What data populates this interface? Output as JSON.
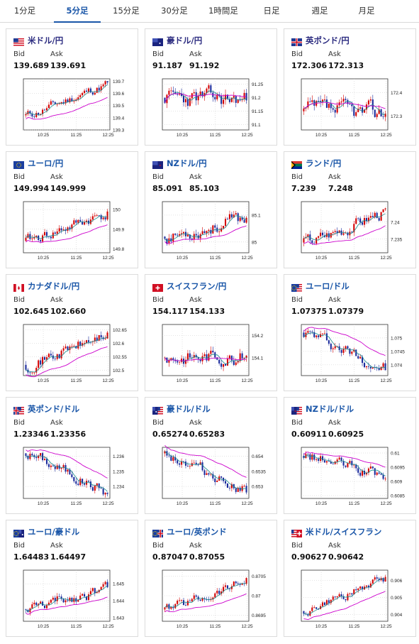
{
  "tabs": [
    {
      "label": "1分足",
      "active": false
    },
    {
      "label": "5分足",
      "active": true
    },
    {
      "label": "15分足",
      "active": false
    },
    {
      "label": "30分足",
      "active": false
    },
    {
      "label": "1時間足",
      "active": false
    },
    {
      "label": "日足",
      "active": false
    },
    {
      "label": "週足",
      "active": false
    },
    {
      "label": "月足",
      "active": false
    }
  ],
  "labels": {
    "bid": "Bid",
    "ask": "Ask"
  },
  "colors": {
    "up": "#d40000",
    "down": "#1a2a9c",
    "ma_fast": "#1a8a8a",
    "ma_slow": "#cc00cc",
    "accent": "#1a56a8"
  },
  "cards": [
    {
      "pair": "米ドル/円",
      "flag": "us-flag",
      "bid": "139.689",
      "ask": "139.691",
      "chart_data": {
        "type": "candlestick",
        "x_ticks": [
          "10:25",
          "11:25",
          "12:25"
        ],
        "y_ticks": [
          "139.7",
          "139.6",
          "139.5",
          "139.4",
          "139.3"
        ],
        "ylim": [
          139.3,
          139.72
        ],
        "open": 139.42,
        "close": 139.69,
        "volatility": 0.03,
        "seed": 11
      }
    },
    {
      "pair": "豪ドル/円",
      "flag": "au-flag",
      "bid": "91.187",
      "ask": "91.192",
      "chart_data": {
        "type": "candlestick",
        "x_ticks": [
          "10:25",
          "11:25",
          "12:25"
        ],
        "y_ticks": [
          "91.25",
          "91.2",
          "91.15",
          "91.1"
        ],
        "ylim": [
          91.08,
          91.27
        ],
        "open": 91.2,
        "close": 91.19,
        "volatility": 0.025,
        "seed": 23
      }
    },
    {
      "pair": "英ポンド/円",
      "flag": "uk-flag",
      "bid": "172.306",
      "ask": "172.313",
      "chart_data": {
        "type": "candlestick",
        "x_ticks": [
          "10:25",
          "11:25",
          "12:25"
        ],
        "y_ticks": [
          "172.4",
          "172.3"
        ],
        "ylim": [
          172.24,
          172.46
        ],
        "open": 172.32,
        "close": 172.31,
        "volatility": 0.03,
        "seed": 37
      }
    },
    {
      "pair": "ユーロ/円",
      "flag": "eu-flag",
      "bid": "149.994",
      "ask": "149.999",
      "chart_data": {
        "type": "candlestick",
        "x_ticks": [
          "10:25",
          "11:25",
          "12:25"
        ],
        "y_ticks": [
          "150",
          "149.9",
          "149.8"
        ],
        "ylim": [
          149.78,
          150.04
        ],
        "open": 149.84,
        "close": 149.99,
        "volatility": 0.022,
        "seed": 41
      }
    },
    {
      "pair": "NZドル/円",
      "flag": "nz-flag",
      "bid": "85.091",
      "ask": "85.103",
      "chart_data": {
        "type": "candlestick",
        "x_ticks": [
          "10:25",
          "11:25",
          "12:25"
        ],
        "y_ticks": [
          "85.1",
          "85"
        ],
        "ylim": [
          84.96,
          85.15
        ],
        "open": 85.02,
        "close": 85.09,
        "volatility": 0.02,
        "seed": 53
      }
    },
    {
      "pair": "ランド/円",
      "flag": "za-flag",
      "bid": "7.239",
      "ask": "7.248",
      "chart_data": {
        "type": "candlestick",
        "x_ticks": [
          "10:25",
          "11:25",
          "12:25"
        ],
        "y_ticks": [
          "7.24",
          "7.235"
        ],
        "ylim": [
          7.231,
          7.246
        ],
        "open": 7.234,
        "close": 7.244,
        "volatility": 0.0015,
        "seed": 67
      }
    },
    {
      "pair": "カナダドル/円",
      "flag": "ca-flag",
      "bid": "102.645",
      "ask": "102.660",
      "chart_data": {
        "type": "candlestick",
        "x_ticks": [
          "10:25",
          "11:25",
          "12:25"
        ],
        "y_ticks": [
          "102.65",
          "102.6",
          "102.55",
          "102.5"
        ],
        "ylim": [
          102.48,
          102.67
        ],
        "open": 102.52,
        "close": 102.64,
        "volatility": 0.018,
        "seed": 71
      }
    },
    {
      "pair": "スイスフラン/円",
      "flag": "ch-flag",
      "bid": "154.117",
      "ask": "154.133",
      "chart_data": {
        "type": "candlestick",
        "x_ticks": [
          "10:25",
          "11:25",
          "12:25"
        ],
        "y_ticks": [
          "154.2",
          "154.1"
        ],
        "ylim": [
          154.02,
          154.25
        ],
        "open": 154.1,
        "close": 154.11,
        "volatility": 0.025,
        "seed": 83
      }
    },
    {
      "pair": "ユーロ/ドル",
      "flag": "euus-flag",
      "bid": "1.07375",
      "ask": "1.07379",
      "chart_data": {
        "type": "candlestick",
        "x_ticks": [
          "10:25",
          "11:25",
          "12:25"
        ],
        "y_ticks": [
          "1.075",
          "1.0745",
          "1.074"
        ],
        "ylim": [
          1.0736,
          1.0755
        ],
        "open": 1.0752,
        "close": 1.0738,
        "volatility": 0.00018,
        "seed": 97
      }
    },
    {
      "pair": "英ポンド/ドル",
      "flag": "ukus-flag",
      "bid": "1.23346",
      "ask": "1.23356",
      "chart_data": {
        "type": "candlestick",
        "x_ticks": [
          "10:25",
          "11:25",
          "12:25"
        ],
        "y_ticks": [
          "1.236",
          "1.235",
          "1.234"
        ],
        "ylim": [
          1.2332,
          1.2366
        ],
        "open": 1.2362,
        "close": 1.2335,
        "volatility": 0.0003,
        "seed": 101
      }
    },
    {
      "pair": "豪ドル/ドル",
      "flag": "auus-flag",
      "bid": "0.65274",
      "ask": "0.65283",
      "chart_data": {
        "type": "candlestick",
        "x_ticks": [
          "10:25",
          "11:25",
          "12:25"
        ],
        "y_ticks": [
          "0.654",
          "0.6535",
          "0.653"
        ],
        "ylim": [
          0.6526,
          0.6543
        ],
        "open": 0.6541,
        "close": 0.6528,
        "volatility": 0.00015,
        "seed": 113
      }
    },
    {
      "pair": "NZドル/ドル",
      "flag": "nzus-flag",
      "bid": "0.60911",
      "ask": "0.60925",
      "chart_data": {
        "type": "candlestick",
        "x_ticks": [
          "10:25",
          "11:25",
          "12:25"
        ],
        "y_ticks": [
          "0.61",
          "0.6095",
          "0.609",
          "0.6085"
        ],
        "ylim": [
          0.6084,
          0.6102
        ],
        "open": 0.6099,
        "close": 0.6091,
        "volatility": 0.00015,
        "seed": 127
      }
    },
    {
      "pair": "ユーロ/豪ドル",
      "flag": "euau-flag",
      "bid": "1.64483",
      "ask": "1.64497",
      "chart_data": {
        "type": "candlestick",
        "x_ticks": [
          "10:25",
          "11:25",
          "12:25"
        ],
        "y_ticks": [
          "1.645",
          "1.644",
          "1.643"
        ],
        "ylim": [
          1.6428,
          1.6458
        ],
        "open": 1.6435,
        "close": 1.6448,
        "volatility": 0.00025,
        "seed": 131
      }
    },
    {
      "pair": "ユーロ/英ポンド",
      "flag": "euuk-flag",
      "bid": "0.87047",
      "ask": "0.87055",
      "chart_data": {
        "type": "candlestick",
        "x_ticks": [
          "10:25",
          "11:25",
          "12:25"
        ],
        "y_ticks": [
          "0.8705",
          "0.87",
          "0.8695"
        ],
        "ylim": [
          0.86935,
          0.87065
        ],
        "open": 0.86965,
        "close": 0.87045,
        "volatility": 0.0001,
        "seed": 139
      }
    },
    {
      "pair": "米ドル/スイスフラン",
      "flag": "usch-flag",
      "bid": "0.90627",
      "ask": "0.90642",
      "chart_data": {
        "type": "candlestick",
        "x_ticks": [
          "10:25",
          "11:25",
          "12:25"
        ],
        "y_ticks": [
          "0.906",
          "0.905",
          "0.904"
        ],
        "ylim": [
          0.9036,
          0.9066
        ],
        "open": 0.9042,
        "close": 0.9062,
        "volatility": 0.0002,
        "seed": 149
      }
    }
  ]
}
